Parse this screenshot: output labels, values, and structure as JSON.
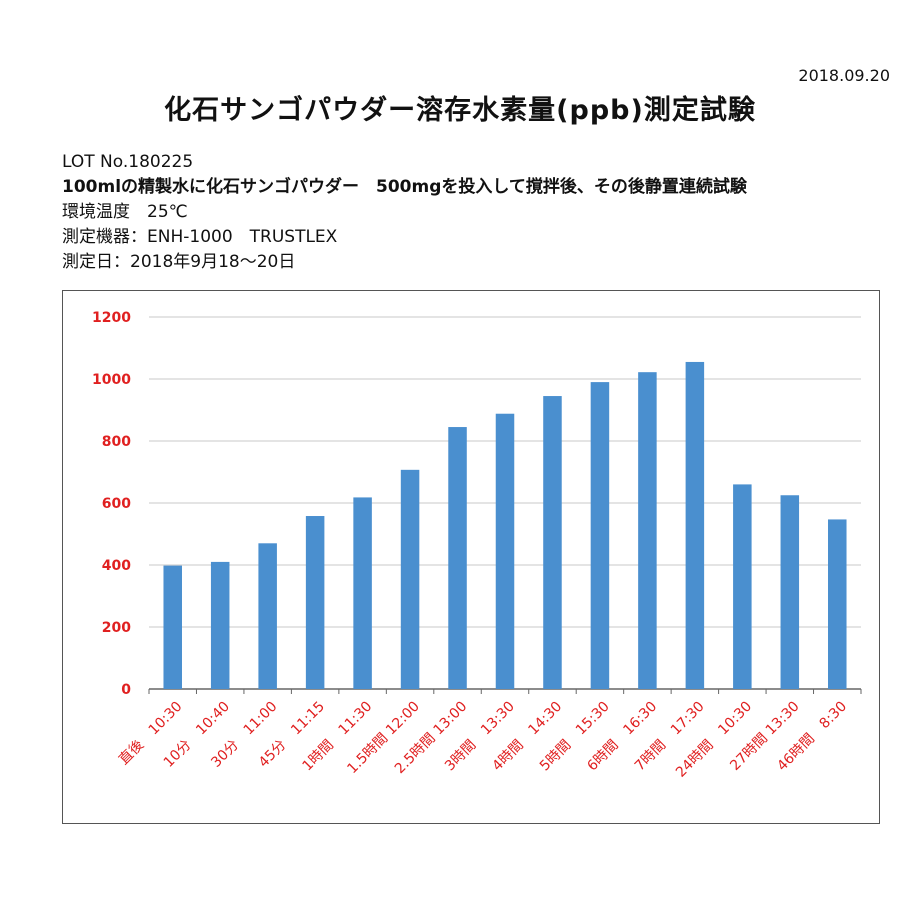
{
  "header": {
    "date": "2018.09.20",
    "title": "化石サンゴパウダー溶存水素量(ppb)測定試験"
  },
  "info": {
    "lot": "LOT No.180225",
    "description": "100mlの精製水に化石サンゴパウダー　500mgを投入して撹拌後、その後静置連続試験",
    "temperature": "環境温度　25℃",
    "instrument": "測定機器：ENH-1000　TRUSTLEX",
    "measure_date": "測定日：2018年9月18～20日"
  },
  "colors": {
    "bar": "#4a8fcf",
    "tick_label": "#e02020",
    "grid": "#c8c8c8",
    "axis": "#666666"
  },
  "chart_data": {
    "type": "bar",
    "title": "",
    "xlabel": "",
    "ylabel": "",
    "ylim": [
      0,
      1200
    ],
    "yticks": [
      0,
      200,
      400,
      600,
      800,
      1000,
      1200
    ],
    "grid": true,
    "categories": [
      "直後　10:30",
      "10分　10:40",
      "30分　11:00",
      "45分　11:15",
      "1時間　11:30",
      "1.5時間 12:00",
      "2.5時間 13:00",
      "3時間　13:30",
      "4時間　14:30",
      "5時間　15:30",
      "6時間　16:30",
      "7時間　17:30",
      "24時間　10:30",
      "27時間 13:30",
      "46時間　8:30"
    ],
    "values": [
      398,
      410,
      470,
      558,
      618,
      707,
      845,
      888,
      945,
      990,
      1022,
      1055,
      660,
      625,
      547
    ]
  }
}
